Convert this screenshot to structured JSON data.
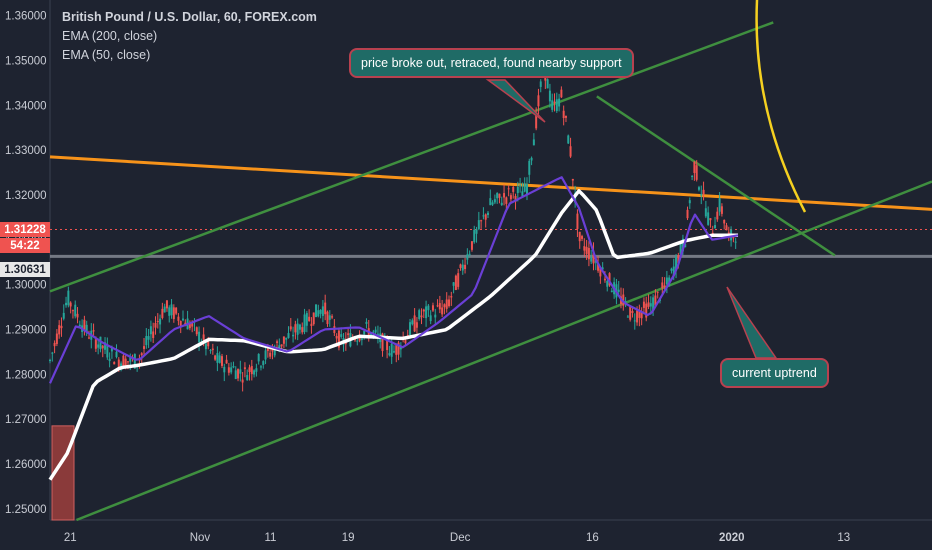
{
  "legend": {
    "title": "British Pound / U.S. Dollar, 60, FOREX.com",
    "ema200": "EMA (200, close)",
    "ema50": "EMA (50, close)"
  },
  "price_tags": {
    "last_price": "1.31228",
    "countdown": "54:22",
    "support_price": "1.30631"
  },
  "annotations": {
    "top_callout": "price broke out, retraced, found nearby support",
    "bottom_callout": "current uptrend"
  },
  "colors": {
    "background": "#1e2330",
    "candle_up": "#26a69a",
    "candle_down": "#ef5350",
    "ema200": "#ffffff",
    "ema50": "#6a3fd6",
    "orange_line": "#f7931a",
    "green_lines": "#3f8f3f",
    "yellow_curve": "#f5d020",
    "last_price_tag": "#ef5350",
    "support_tag": "#e8e8e8",
    "callout_bg": "#1f6b66",
    "callout_border": "#b8414f"
  },
  "chart_data": {
    "type": "line",
    "title": "British Pound / U.S. Dollar, 60, FOREX.com",
    "y_ticks": [
      "1.36000",
      "1.35000",
      "1.34000",
      "1.33000",
      "1.32000",
      "1.31000",
      "1.30000",
      "1.29000",
      "1.28000",
      "1.27000",
      "1.26000",
      "1.25000"
    ],
    "x_ticks": [
      "21",
      "Nov",
      "11",
      "19",
      "Dec",
      "16",
      "2020",
      "13"
    ],
    "ylim": [
      1.2475,
      1.3635
    ],
    "series": [
      {
        "name": "EMA (200, close)",
        "x": [
          0,
          0.02,
          0.05,
          0.08,
          0.1,
          0.14,
          0.18,
          0.22,
          0.27,
          0.31,
          0.35,
          0.4,
          0.45,
          0.5,
          0.55,
          0.58,
          0.6,
          0.62,
          0.64,
          0.68,
          0.72,
          0.75,
          0.78
        ],
        "y": [
          1.2565,
          1.2625,
          1.278,
          1.2815,
          1.282,
          1.2835,
          1.2878,
          1.2875,
          1.285,
          1.2855,
          1.2885,
          1.288,
          1.29,
          1.2975,
          1.3065,
          1.316,
          1.321,
          1.3165,
          1.306,
          1.307,
          1.3098,
          1.311,
          1.311
        ]
      },
      {
        "name": "EMA (50, close)",
        "x": [
          0,
          0.03,
          0.06,
          0.1,
          0.14,
          0.18,
          0.22,
          0.27,
          0.31,
          0.35,
          0.4,
          0.44,
          0.48,
          0.52,
          0.55,
          0.58,
          0.6,
          0.62,
          0.65,
          0.68,
          0.71,
          0.73,
          0.75,
          0.78
        ],
        "y": [
          1.278,
          1.291,
          1.287,
          1.283,
          1.29,
          1.293,
          1.288,
          1.285,
          1.29,
          1.2905,
          1.286,
          1.2915,
          1.298,
          1.318,
          1.321,
          1.324,
          1.317,
          1.305,
          1.296,
          1.293,
          1.303,
          1.316,
          1.31,
          1.311
        ]
      }
    ],
    "price_path": {
      "x": [
        0,
        0.02,
        0.04,
        0.06,
        0.08,
        0.1,
        0.13,
        0.16,
        0.19,
        0.22,
        0.25,
        0.28,
        0.31,
        0.33,
        0.36,
        0.39,
        0.42,
        0.45,
        0.48,
        0.5,
        0.52,
        0.54,
        0.56,
        0.57,
        0.58,
        0.59,
        0.6,
        0.62,
        0.64,
        0.66,
        0.68,
        0.7,
        0.72,
        0.73,
        0.74,
        0.75,
        0.76,
        0.77,
        0.78
      ],
      "y": [
        1.283,
        1.297,
        1.29,
        1.286,
        1.283,
        1.283,
        1.295,
        1.291,
        1.283,
        1.28,
        1.285,
        1.29,
        1.295,
        1.287,
        1.29,
        1.285,
        1.293,
        1.295,
        1.31,
        1.318,
        1.32,
        1.321,
        1.349,
        1.339,
        1.342,
        1.33,
        1.31,
        1.305,
        1.299,
        1.293,
        1.295,
        1.3,
        1.31,
        1.327,
        1.32,
        1.312,
        1.318,
        1.31,
        1.312
      ]
    },
    "lines": [
      {
        "name": "",
        "color": "orange",
        "from": [
          0,
          1.3285
        ],
        "to": [
          1,
          1.3168
        ]
      },
      {
        "name": "",
        "color": "green",
        "from": [
          0,
          1.2985
        ],
        "to": [
          0.82,
          1.3585
        ]
      },
      {
        "name": "",
        "color": "green",
        "from": [
          0.03,
          1.2475
        ],
        "to": [
          1,
          1.323
        ]
      },
      {
        "name": "",
        "color": "green",
        "from": [
          0.62,
          1.342
        ],
        "to": [
          0.89,
          1.3065
        ]
      }
    ],
    "horizontal_levels": [
      1.3063,
      1.3123
    ],
    "grid": false,
    "legend_position": "top-left"
  }
}
